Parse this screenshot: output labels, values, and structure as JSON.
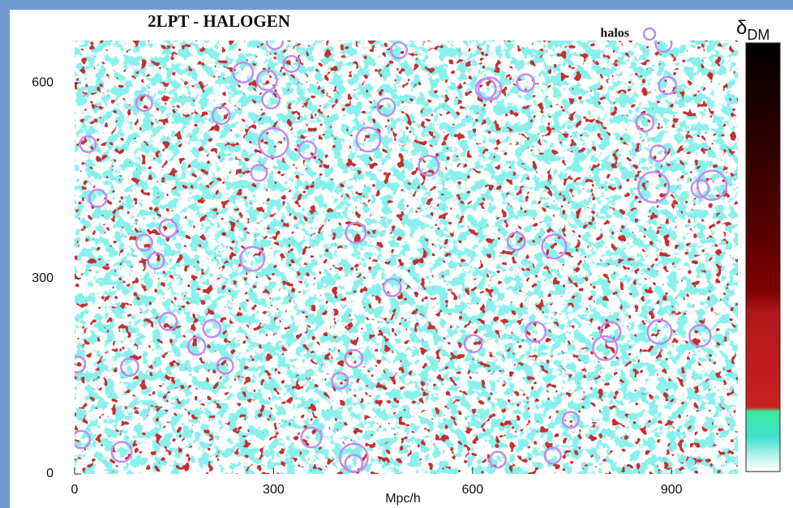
{
  "chart_data": {
    "type": "scatter",
    "title": "2LPT - HALOGEN",
    "x_label": "Mpc/h",
    "xlim": [
      0,
      1000
    ],
    "ylim": [
      0,
      665
    ],
    "xticks": [
      0,
      300,
      600,
      900
    ],
    "yticks": [
      0,
      300,
      600
    ],
    "legend": "top-right",
    "colorbar": {
      "label": "δ",
      "subscript": "DM",
      "colors": [
        "#ffffff",
        "#c8f4f0",
        "#40e0d0",
        "#3ce89a",
        "#cc2020",
        "#b01818",
        "#800000",
        "#5a0000",
        "#300000",
        "#000000"
      ]
    },
    "series": [
      {
        "name": "halos",
        "color": "#c38af0",
        "x": [
          302,
          489,
          327,
          254,
          290,
          620,
          626,
          680,
          894,
          888,
          105,
          296,
          221,
          470,
          860,
          20,
          300,
          443,
          351,
          534,
          880,
          278,
          873,
          961,
          943,
          35,
          141,
          105,
          123,
          424,
          268,
          666,
          723,
          479,
          141,
          207,
          184,
          601,
          695,
          882,
          800,
          808,
          943,
          4,
          83,
          227,
          421,
          400,
          748,
          10,
          71,
          357,
          421,
          421,
          638,
          721
        ],
        "y": [
          664,
          650,
          629,
          616,
          604,
          591,
          591,
          600,
          596,
          660,
          569,
          574,
          550,
          563,
          539,
          506,
          508,
          513,
          497,
          473,
          492,
          462,
          440,
          443,
          438,
          423,
          377,
          355,
          327,
          370,
          330,
          357,
          349,
          286,
          234,
          223,
          196,
          200,
          218,
          218,
          193,
          218,
          212,
          168,
          164,
          166,
          177,
          143,
          83,
          53,
          34,
          56,
          25,
          16,
          22,
          28
        ],
        "sizes": [
          12,
          12,
          12,
          15,
          15,
          15,
          17,
          13,
          13,
          12,
          12,
          13,
          13,
          13,
          13,
          12,
          22,
          18,
          13,
          15,
          12,
          12,
          23,
          22,
          13,
          13,
          13,
          12,
          12,
          15,
          18,
          13,
          18,
          13,
          13,
          13,
          13,
          13,
          15,
          18,
          18,
          15,
          16,
          12,
          13,
          12,
          13,
          12,
          12,
          13,
          15,
          15,
          21,
          13,
          12,
          12
        ]
      }
    ]
  }
}
